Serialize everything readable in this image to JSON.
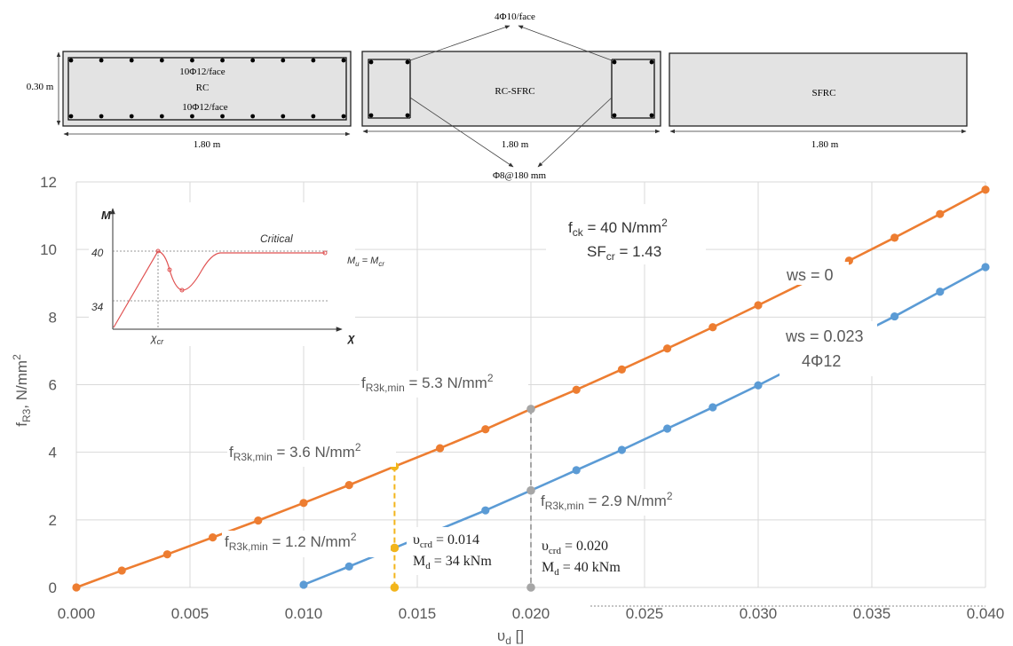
{
  "sections": [
    {
      "label": "RC",
      "width": "1.80 m",
      "height": "0.30 m",
      "top_reinf": "10Φ12/face",
      "bottom_reinf": "10Φ12/face"
    },
    {
      "label": "RC-SFRC",
      "width": "1.80 m",
      "top_callout": "4Φ10/face",
      "bottom_callout": "Φ8@180 mm"
    },
    {
      "label": "SFRC",
      "width": "1.80 m"
    }
  ],
  "chart_data": {
    "type": "line",
    "xlabel": "υ",
    "xlabel_sub": "d",
    "xlabel_unit": " []",
    "ylabel": "f",
    "ylabel_sub": "R3",
    "ylabel_unit": ", N/mm",
    "ylabel_sup": "2",
    "xlim": [
      0,
      0.04
    ],
    "ylim": [
      0,
      12
    ],
    "xticks": [
      "0.000",
      "0.005",
      "0.010",
      "0.015",
      "0.020",
      "0.025",
      "0.030",
      "0.035",
      "0.040"
    ],
    "yticks": [
      "0",
      "2",
      "4",
      "6",
      "8",
      "10",
      "12"
    ],
    "grid": true,
    "series": [
      {
        "name": "ws = 0",
        "color": "#ed7d31",
        "x": [
          0,
          0.002,
          0.004,
          0.006,
          0.008,
          0.01,
          0.012,
          0.014,
          0.016,
          0.018,
          0.02,
          0.022,
          0.024,
          0.026,
          0.028,
          0.03,
          0.034,
          0.036,
          0.038,
          0.04
        ],
        "y": [
          0,
          0.5,
          0.98,
          1.48,
          1.98,
          2.5,
          3.03,
          3.58,
          4.12,
          4.68,
          5.28,
          5.85,
          6.45,
          7.07,
          7.7,
          8.35,
          9.67,
          10.35,
          11.05,
          11.77
        ]
      },
      {
        "name": "ws = 0.023",
        "name2": "4Φ12",
        "color": "#5b9bd5",
        "x": [
          0.01,
          0.012,
          0.014,
          0.018,
          0.02,
          0.022,
          0.024,
          0.026,
          0.028,
          0.03,
          0.036,
          0.038,
          0.04
        ],
        "y": [
          0.08,
          0.62,
          1.17,
          2.28,
          2.87,
          3.47,
          4.07,
          4.7,
          5.33,
          5.98,
          8.02,
          8.75,
          9.48
        ]
      }
    ],
    "markers": [
      {
        "x": 0.014,
        "y": 3.58,
        "color": "#f2b51b"
      },
      {
        "x": 0.014,
        "y": 1.17,
        "color": "#f2b51b"
      },
      {
        "x": 0.014,
        "y": 0,
        "color": "#f2b51b"
      },
      {
        "x": 0.02,
        "y": 5.28,
        "color": "#a6a6a6"
      },
      {
        "x": 0.02,
        "y": 2.87,
        "color": "#a6a6a6"
      },
      {
        "x": 0.02,
        "y": 0,
        "color": "#a6a6a6"
      }
    ],
    "guides": [
      {
        "x": 0.014,
        "y_top": 3.58,
        "color": "#f2b51b"
      },
      {
        "x": 0.02,
        "y_top": 5.28,
        "color": "#a6a6a6"
      }
    ],
    "annotations": {
      "fck_main": "f",
      "fck_sub": "ck",
      "fck_rest": " = 40 N/mm",
      "fck_sup": "2",
      "sf_main": "SF",
      "sf_sub": "cr",
      "sf_rest": " = 1.43",
      "ws0": "ws = 0",
      "ws023": "ws = 0.023",
      "ws023_reinf": "4Φ12",
      "f_main": "f",
      "f_sub": "R3k,min",
      "f_sup": "2",
      "f53": " = 5.3 N/mm",
      "f36": " = 3.6 N/mm",
      "f12": " = 1.2 N/mm",
      "f29": " = 2.9 N/mm",
      "v014_sym": "υ",
      "v014_sub": "crd",
      "v014": " = 0.014",
      "m34_sym": "M",
      "m34_sub": "d",
      "m34": " = 34 kNm",
      "v020_sym": "υ",
      "v020_sub": "crd",
      "v020": " = 0.020",
      "m40_sym": "M",
      "m40_sub": "d",
      "m40": " = 40 kNm"
    },
    "inset": {
      "ylabel": "M",
      "xlabel": "χ",
      "y40": "40",
      "y34": "34",
      "xcr_sym": "χ",
      "xcr_sub": "cr",
      "critical": "Critical",
      "mu_sym": "M",
      "mu_sub": "u",
      "mu_eq": " = ",
      "mcr_sym": "M",
      "mcr_sub": "cr",
      "curve_color": "#e05252"
    }
  }
}
